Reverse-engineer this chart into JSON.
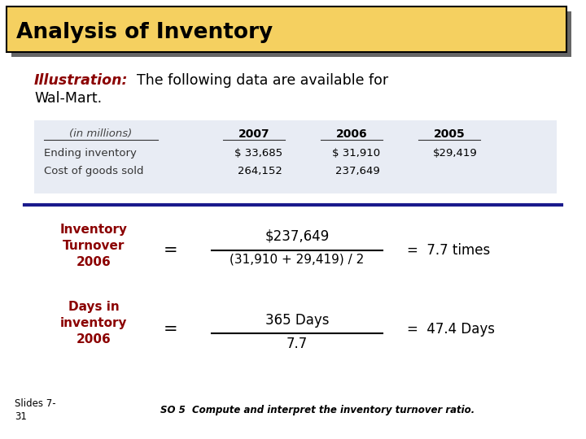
{
  "title": "Analysis of Inventory",
  "title_bg": "#F5D060",
  "title_color": "#000000",
  "illustration_label": "Illustration:",
  "illustration_label_color": "#8B0000",
  "table_bg": "#E8ECF4",
  "table_headers": [
    "(in millions)",
    "2007",
    "2006",
    "2005"
  ],
  "table_rows": [
    [
      "Ending inventory",
      "$ 33,685",
      "$ 31,910",
      "$29,419"
    ],
    [
      "Cost of goods sold",
      "264,152",
      "237,649",
      ""
    ]
  ],
  "divider_color": "#1a1a8c",
  "label1": "Inventory\nTurnover\n2006",
  "label1_color": "#8B0000",
  "numerator1": "$237,649",
  "denominator1": "(31,910 + 29,419) / 2",
  "result1": "=  7.7 times",
  "label2": "Days in\ninventory\n2006",
  "label2_color": "#8B0000",
  "numerator2": "365 Days",
  "denominator2": "7.7",
  "result2": "=  47.4 Days",
  "footer_left": "Slides 7-\n31",
  "footer_right": "SO 5  Compute and interpret the inventory turnover ratio.",
  "bg_color": "#FFFFFF",
  "shadow_color": "#666666"
}
